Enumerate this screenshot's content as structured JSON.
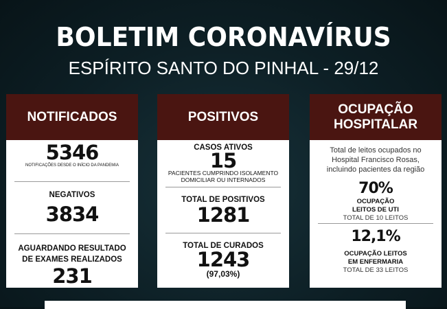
{
  "header": {
    "title": "BOLETIM CORONAVÍRUS",
    "subtitle": "ESPÍRITO SANTO DO PINHAL - 29/12"
  },
  "notificados": {
    "title": "NOTIFICADOS",
    "total": "5346",
    "total_note": "NOTIFICAÇÕES DESDE O INÍCIO DA PANDEMIA",
    "negativos_label": "NEGATIVOS",
    "negativos": "3834",
    "aguardando_label": "AGUARDANDO RESULTADO DE EXAMES REALIZADOS",
    "aguardando": "231"
  },
  "positivos": {
    "title": "POSITIVOS",
    "ativos_label": "CASOS ATIVOS",
    "ativos": "15",
    "ativos_note": "PACIENTES CUMPRINDO ISOLAMENTO DOMICILIAR OU INTERNADOS",
    "total_label": "TOTAL DE POSITIVOS",
    "total": "1281",
    "curados_label": "TOTAL DE CURADOS",
    "curados": "1243",
    "curados_pct": "(97,03%)"
  },
  "ocupacao": {
    "title": "OCUPAÇÃO HOSPITALAR",
    "description": "Total de leitos ocupados no Hospital Francisco Rosas, incluindo pacientes da região",
    "uti_pct": "70%",
    "uti_label": "OCUPAÇÃO LEITOS DE UTI",
    "uti_total": "TOTAL DE 10 LEITOS",
    "enf_pct": "12,1%",
    "enf_label": "OCUPAÇÃO LEITOS EM ENFERMARIA",
    "enf_total": "TOTAL DE 33 LEITOS"
  },
  "colors": {
    "header_bg": "#4a1511",
    "background": "#0d1f25"
  }
}
